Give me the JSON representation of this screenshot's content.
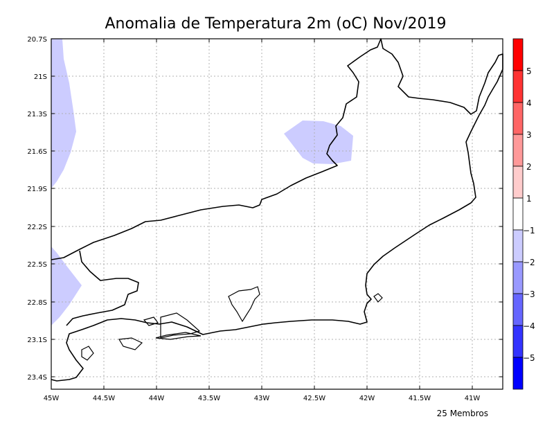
{
  "title": "Anomalia de Temperatura 2m (oC) Nov/2019",
  "footnote": "25 Membros",
  "map": {
    "lat_labels": [
      "20.7S",
      "21S",
      "21.3S",
      "21.6S",
      "21.9S",
      "22.2S",
      "22.5S",
      "22.8S",
      "23.1S",
      "23.4S"
    ],
    "lon_labels": [
      "45W",
      "44.5W",
      "44W",
      "43.5W",
      "43W",
      "42.5W",
      "42W",
      "41.5W",
      "41W"
    ],
    "lat_range": [
      -23.5,
      -20.7
    ],
    "lon_range": [
      -45.0,
      -40.7
    ],
    "anomaly_regions": [
      {
        "name": "west-north",
        "class": "-1 to -2"
      },
      {
        "name": "central-north",
        "class": "-1 to -2"
      },
      {
        "name": "west-south",
        "class": "-1 to -2"
      }
    ]
  },
  "colorbar": {
    "labels": [
      "5",
      "4",
      "3",
      "2",
      "1",
      "−1",
      "−2",
      "−3",
      "−4",
      "−5"
    ],
    "colors": [
      "#ff0000",
      "#ff3333",
      "#ff6666",
      "#ff9999",
      "#ffcccc",
      "#ffffff",
      "#ccccff",
      "#9999ff",
      "#6666ff",
      "#3333ff",
      "#0000ff"
    ]
  }
}
